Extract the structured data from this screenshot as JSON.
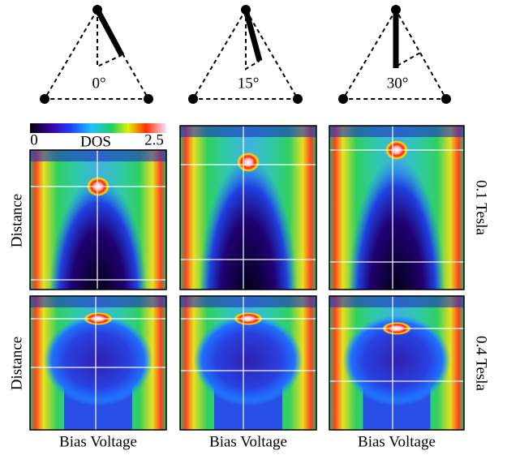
{
  "triangles": [
    {
      "label": "0°"
    },
    {
      "label": "15°"
    },
    {
      "label": "30°"
    }
  ],
  "colorbar": {
    "label": "DOS",
    "min": "0",
    "max": "2.5"
  },
  "row_labels": [
    "0.1 Tesla",
    "0.4 Tesla"
  ],
  "y_axis_label": "Distance",
  "x_axis_label": "Bias Voltage"
}
